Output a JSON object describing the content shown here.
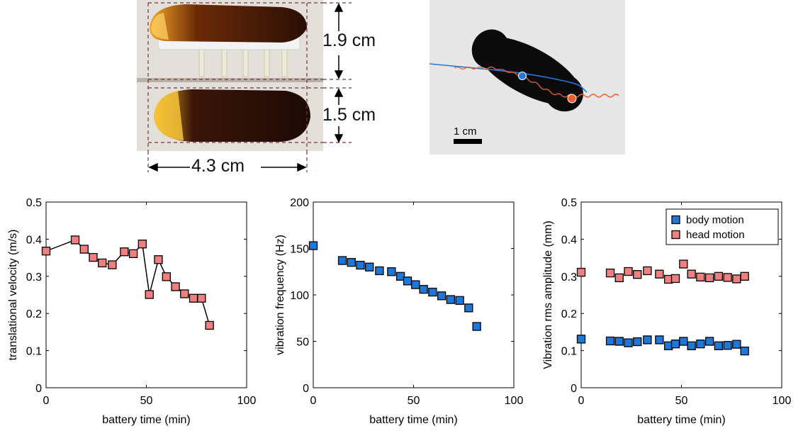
{
  "photos": {
    "side_view": {
      "dim_height_body": "1.9 cm",
      "dim_height_shell": "1.5 cm",
      "dim_length": "4.3 cm"
    },
    "tracking_view": {
      "scale_label": "1 cm"
    }
  },
  "colors": {
    "body_motion": "#1f78d8",
    "head_motion": "#f08080",
    "line": "#000000",
    "trace_orange": "#e8632b"
  },
  "chart_data": [
    {
      "type": "line",
      "xlabel": "battery time (min)",
      "ylabel": "translational velocity (m/s)",
      "xlim": [
        0,
        100
      ],
      "ylim": [
        0,
        0.5
      ],
      "xticks": [
        0,
        50,
        100
      ],
      "yticks": [
        0,
        0.1,
        0.2,
        0.3,
        0.4,
        0.5
      ],
      "ytick_labels": [
        "0",
        "0.1",
        "0.2",
        "0.3",
        "0.4",
        "0.5"
      ],
      "grid": false,
      "series": [
        {
          "marker": "square",
          "color": "#f08080",
          "connected": true,
          "x": [
            0,
            14.5,
            19,
            23.5,
            28,
            33,
            39,
            43.5,
            48,
            51.5,
            56,
            60,
            64.5,
            69,
            73.5,
            77.5,
            81.5
          ],
          "y": [
            0.368,
            0.398,
            0.373,
            0.351,
            0.336,
            0.331,
            0.366,
            0.361,
            0.387,
            0.251,
            0.345,
            0.299,
            0.272,
            0.253,
            0.241,
            0.241,
            0.168
          ]
        }
      ]
    },
    {
      "type": "scatter",
      "xlabel": "battery time (min)",
      "ylabel": "vibration frequency (Hz)",
      "xlim": [
        0,
        100
      ],
      "ylim": [
        0,
        200
      ],
      "xticks": [
        0,
        50,
        100
      ],
      "yticks": [
        0,
        50,
        100,
        150,
        200
      ],
      "ytick_labels": [
        "0",
        "50",
        "100",
        "150",
        "200"
      ],
      "grid": false,
      "series": [
        {
          "marker": "square",
          "color": "#1f78d8",
          "connected": false,
          "x": [
            0,
            14.5,
            19,
            23.5,
            28,
            33,
            39,
            43.5,
            47,
            51,
            55,
            59.5,
            64,
            68.5,
            73,
            77.5,
            81.5
          ],
          "y": [
            153,
            137,
            135,
            132,
            130,
            126,
            125,
            120,
            115,
            111,
            106,
            103,
            99,
            95,
            94,
            86,
            66
          ]
        }
      ]
    },
    {
      "type": "scatter",
      "xlabel": "battery time (min)",
      "ylabel": "Vibration rms amplitude (mm)",
      "xlim": [
        0,
        100
      ],
      "ylim": [
        0,
        0.5
      ],
      "xticks": [
        0,
        50,
        100
      ],
      "yticks": [
        0,
        0.1,
        0.2,
        0.3,
        0.4,
        0.5
      ],
      "ytick_labels": [
        "0",
        "0.1",
        "0.2",
        "0.3",
        "0.4",
        "0.5"
      ],
      "grid": false,
      "legend": {
        "placement": "top-right",
        "entries": [
          "body motion",
          "head motion"
        ]
      },
      "series": [
        {
          "name": "body motion",
          "marker": "square",
          "color": "#1f78d8",
          "connected": false,
          "x": [
            0,
            14.5,
            19,
            23.5,
            28,
            33,
            39,
            43.5,
            47,
            51,
            55,
            59.5,
            64,
            68.5,
            73,
            77.5,
            81.5
          ],
          "y": [
            0.131,
            0.126,
            0.125,
            0.121,
            0.124,
            0.129,
            0.129,
            0.113,
            0.118,
            0.125,
            0.113,
            0.118,
            0.125,
            0.113,
            0.114,
            0.117,
            0.099
          ]
        },
        {
          "name": "head motion",
          "marker": "square",
          "color": "#f08080",
          "connected": false,
          "x": [
            0,
            14.5,
            19,
            23.5,
            28,
            33,
            39,
            43.5,
            47,
            51,
            55,
            59.5,
            64,
            68.5,
            73,
            77.5,
            81.5
          ],
          "y": [
            0.311,
            0.309,
            0.296,
            0.313,
            0.305,
            0.315,
            0.306,
            0.292,
            0.294,
            0.333,
            0.306,
            0.298,
            0.296,
            0.3,
            0.297,
            0.293,
            0.3
          ]
        }
      ]
    }
  ]
}
